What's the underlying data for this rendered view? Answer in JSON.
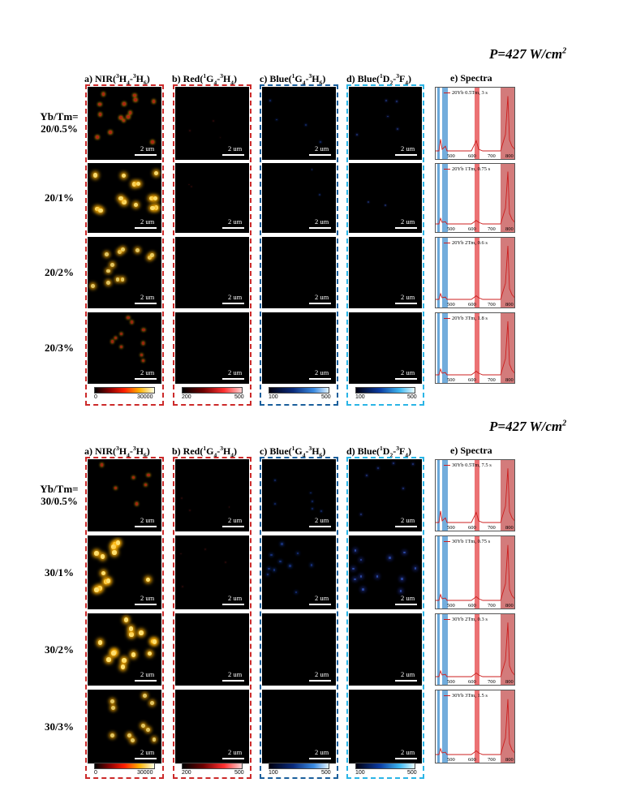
{
  "figures": [
    {
      "power_label": "P=427 W/cm",
      "power_sup": "2",
      "row_prefix": "Yb/Tm=",
      "rows": [
        "20/0.5%",
        "20/1%",
        "20/2%",
        "20/3%"
      ],
      "spectra_names": [
        "20Yb 0.5Tm, 3 s",
        "20Yb 1Tm, 0.75 s",
        "20Yb 2Tm, 0.6 s",
        "20Yb 3Tm, 1.8 s"
      ]
    },
    {
      "power_label": "P=427 W/cm",
      "power_sup": "2",
      "row_prefix": "Yb/Tm=",
      "rows": [
        "30/0.5%",
        "30/1%",
        "30/2%",
        "30/3%"
      ],
      "spectra_names": [
        "30Yb 0.5Tm, 7.5 s",
        "30Yb 1Tm, 0.75 s",
        "30Yb 2Tm, 0.3 s",
        "30Yb 3Tm, 1.5 s"
      ]
    }
  ],
  "column_headers": {
    "a": {
      "pre": "a) NIR(",
      "s1": "3",
      "m1": "H",
      "b1": "4",
      "dash": "-",
      "s2": "3",
      "m2": "H",
      "b2": "6",
      "post": ")"
    },
    "b": {
      "pre": "b) Red(",
      "s1": "1",
      "m1": "G",
      "b1": "4",
      "dash": "-",
      "s2": "3",
      "m2": "H",
      "b2": "4",
      "post": ")"
    },
    "c": {
      "pre": "c) Blue(",
      "s1": "1",
      "m1": "G",
      "b1": "4",
      "dash": "-",
      "s2": "3",
      "m2": "H",
      "b2": "6",
      "post": ")"
    },
    "d": {
      "pre": "d) Blue(",
      "s1": "1",
      "m1": "D",
      "b1": "2",
      "dash": "-",
      "s2": "3",
      "m2": "F",
      "b2": "4",
      "post": ")"
    },
    "e": {
      "label": "e) Spectra"
    }
  },
  "scale_bar_label": "2 um",
  "colorbars": {
    "nir": {
      "min": "0",
      "max": "30000",
      "colormap": "hot"
    },
    "red": {
      "min": "200",
      "max": "500",
      "colormap": "red"
    },
    "blue1": {
      "min": "100",
      "max": "500",
      "colormap": "blue"
    },
    "blue2": {
      "min": "100",
      "max": "500",
      "colormap": "cyan"
    }
  },
  "spectra_axis_ticks": [
    "500",
    "600",
    "700",
    "800"
  ],
  "colors": {
    "nir_frame": "#cc2a2a",
    "red_frame": "#cc2a2a",
    "blue_frame": "#1a5f9c",
    "cyan_frame": "#2bb5e6",
    "band_blue": "#5a9fd6",
    "band_red": "#e8585a"
  }
}
